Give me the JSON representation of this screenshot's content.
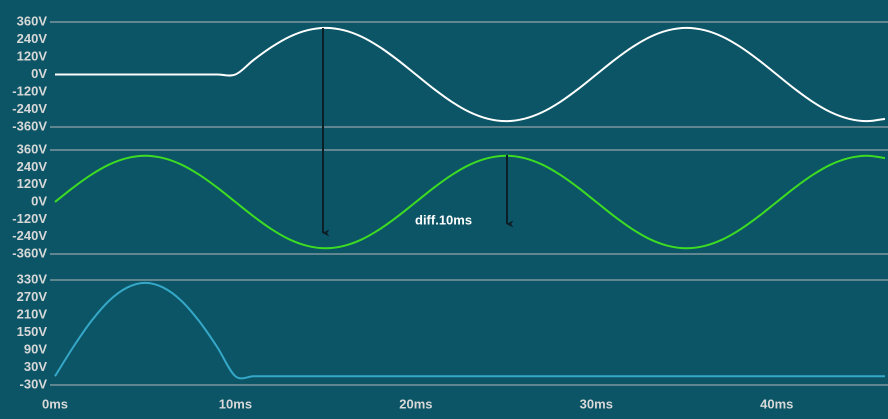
{
  "chart_data": [
    {
      "type": "line",
      "color": "#ffffff",
      "x": [
        0,
        1,
        2,
        3,
        4,
        5,
        6,
        7,
        8,
        9,
        10,
        11,
        12,
        13,
        14,
        15,
        16,
        17,
        18,
        19,
        20,
        21,
        22,
        23,
        24,
        25,
        26,
        27,
        28,
        29,
        30,
        31,
        32,
        33,
        34,
        35,
        36,
        37,
        38,
        39,
        40,
        41,
        42,
        43,
        44,
        45,
        46
      ],
      "values": [
        0,
        0,
        0,
        0,
        0,
        0,
        0,
        0,
        0,
        0,
        0,
        99,
        188,
        259,
        304,
        320,
        304,
        259,
        188,
        99,
        0,
        -99,
        -188,
        -259,
        -304,
        -320,
        -304,
        -259,
        -188,
        -99,
        0,
        99,
        188,
        259,
        304,
        320,
        304,
        259,
        188,
        99,
        0,
        -99,
        -188,
        -259,
        -304,
        -320,
        -304
      ],
      "xlim": [
        0,
        46
      ],
      "ylim": [
        -360,
        360
      ],
      "yticks": [
        {
          "value": 360,
          "label": "360V"
        },
        {
          "value": 240,
          "label": "240V"
        },
        {
          "value": 120,
          "label": "120V"
        },
        {
          "value": 0,
          "label": "0V"
        },
        {
          "value": -120,
          "label": "-120V"
        },
        {
          "value": -240,
          "label": "-240V"
        },
        {
          "value": -360,
          "label": "-360V"
        }
      ]
    },
    {
      "type": "line",
      "color": "#3ddc22",
      "x": [
        0,
        1,
        2,
        3,
        4,
        5,
        6,
        7,
        8,
        9,
        10,
        11,
        12,
        13,
        14,
        15,
        16,
        17,
        18,
        19,
        20,
        21,
        22,
        23,
        24,
        25,
        26,
        27,
        28,
        29,
        30,
        31,
        32,
        33,
        34,
        35,
        36,
        37,
        38,
        39,
        40,
        41,
        42,
        43,
        44,
        45,
        46
      ],
      "values": [
        0,
        99,
        188,
        259,
        304,
        320,
        304,
        259,
        188,
        99,
        0,
        -99,
        -188,
        -259,
        -304,
        -320,
        -304,
        -259,
        -188,
        -99,
        0,
        99,
        188,
        259,
        304,
        320,
        304,
        259,
        188,
        99,
        0,
        -99,
        -188,
        -259,
        -304,
        -320,
        -304,
        -259,
        -188,
        -99,
        0,
        99,
        188,
        259,
        304,
        320,
        304
      ],
      "xlim": [
        0,
        46
      ],
      "ylim": [
        -360,
        360
      ],
      "yticks": [
        {
          "value": 360,
          "label": "360V"
        },
        {
          "value": 240,
          "label": "240V"
        },
        {
          "value": 120,
          "label": "120V"
        },
        {
          "value": 0,
          "label": "0V"
        },
        {
          "value": -120,
          "label": "-120V"
        },
        {
          "value": -240,
          "label": "-240V"
        },
        {
          "value": -360,
          "label": "-360V"
        }
      ],
      "annotation": "diff.10ms"
    },
    {
      "type": "line",
      "color": "#35a8c8",
      "x": [
        0,
        1,
        2,
        3,
        4,
        5,
        6,
        7,
        8,
        9,
        10,
        11,
        12,
        13,
        14,
        15,
        16,
        17,
        18,
        19,
        20,
        21,
        22,
        23,
        24,
        25,
        26,
        27,
        28,
        29,
        30,
        31,
        32,
        33,
        34,
        35,
        36,
        37,
        38,
        39,
        40,
        41,
        42,
        43,
        44,
        45,
        46
      ],
      "values": [
        0,
        99,
        188,
        259,
        304,
        320,
        304,
        259,
        188,
        99,
        0,
        0,
        0,
        0,
        0,
        0,
        0,
        0,
        0,
        0,
        0,
        0,
        0,
        0,
        0,
        0,
        0,
        0,
        0,
        0,
        0,
        0,
        0,
        0,
        0,
        0,
        0,
        0,
        0,
        0,
        0,
        0,
        0,
        0,
        0,
        0,
        0
      ],
      "xlim": [
        0,
        46
      ],
      "ylim": [
        -30,
        330
      ],
      "yticks": [
        {
          "value": 330,
          "label": "330V"
        },
        {
          "value": 270,
          "label": "270V"
        },
        {
          "value": 210,
          "label": "210V"
        },
        {
          "value": 150,
          "label": "150V"
        },
        {
          "value": 90,
          "label": "90V"
        },
        {
          "value": 30,
          "label": "30V"
        },
        {
          "value": -30,
          "label": "-30V"
        }
      ],
      "xticks": [
        {
          "value": 0,
          "label": "0ms"
        },
        {
          "value": 10,
          "label": "10ms"
        },
        {
          "value": 20,
          "label": "20ms"
        },
        {
          "value": 30,
          "label": "30ms"
        },
        {
          "value": 40,
          "label": "40ms"
        }
      ]
    }
  ]
}
